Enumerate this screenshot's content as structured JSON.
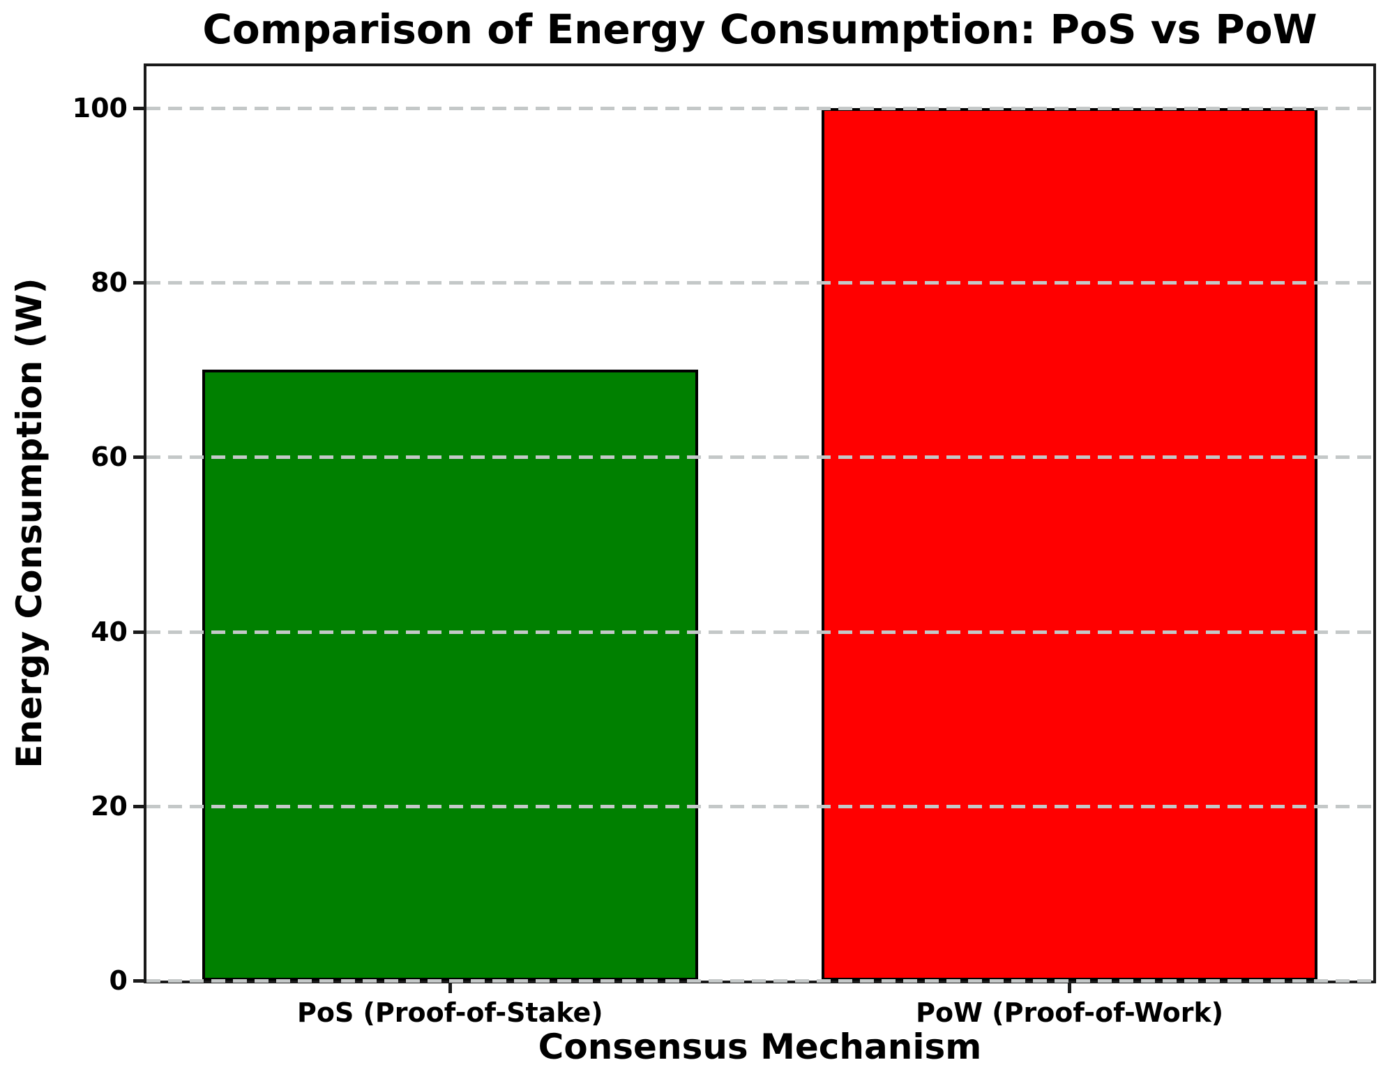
{
  "chart_data": {
    "type": "bar",
    "title": "Comparison of Energy Consumption: PoS vs PoW",
    "xlabel": "Consensus Mechanism",
    "ylabel": "Energy Consumption (W)",
    "categories": [
      "PoS (Proof-of-Stake)",
      "PoW (Proof-of-Work)"
    ],
    "values": [
      70,
      100
    ],
    "bar_colors": [
      "#008000",
      "#ff0000"
    ],
    "bar_edge_color": "#000000",
    "yticks": [
      0,
      20,
      40,
      60,
      80,
      100
    ],
    "ylim": [
      0,
      104.8
    ],
    "grid": {
      "axis": "y",
      "style": "dashed",
      "color": "#c4c8c8"
    },
    "legend": "none",
    "plot_background": "#ffffff",
    "spine_color": "#1a1a1a"
  }
}
